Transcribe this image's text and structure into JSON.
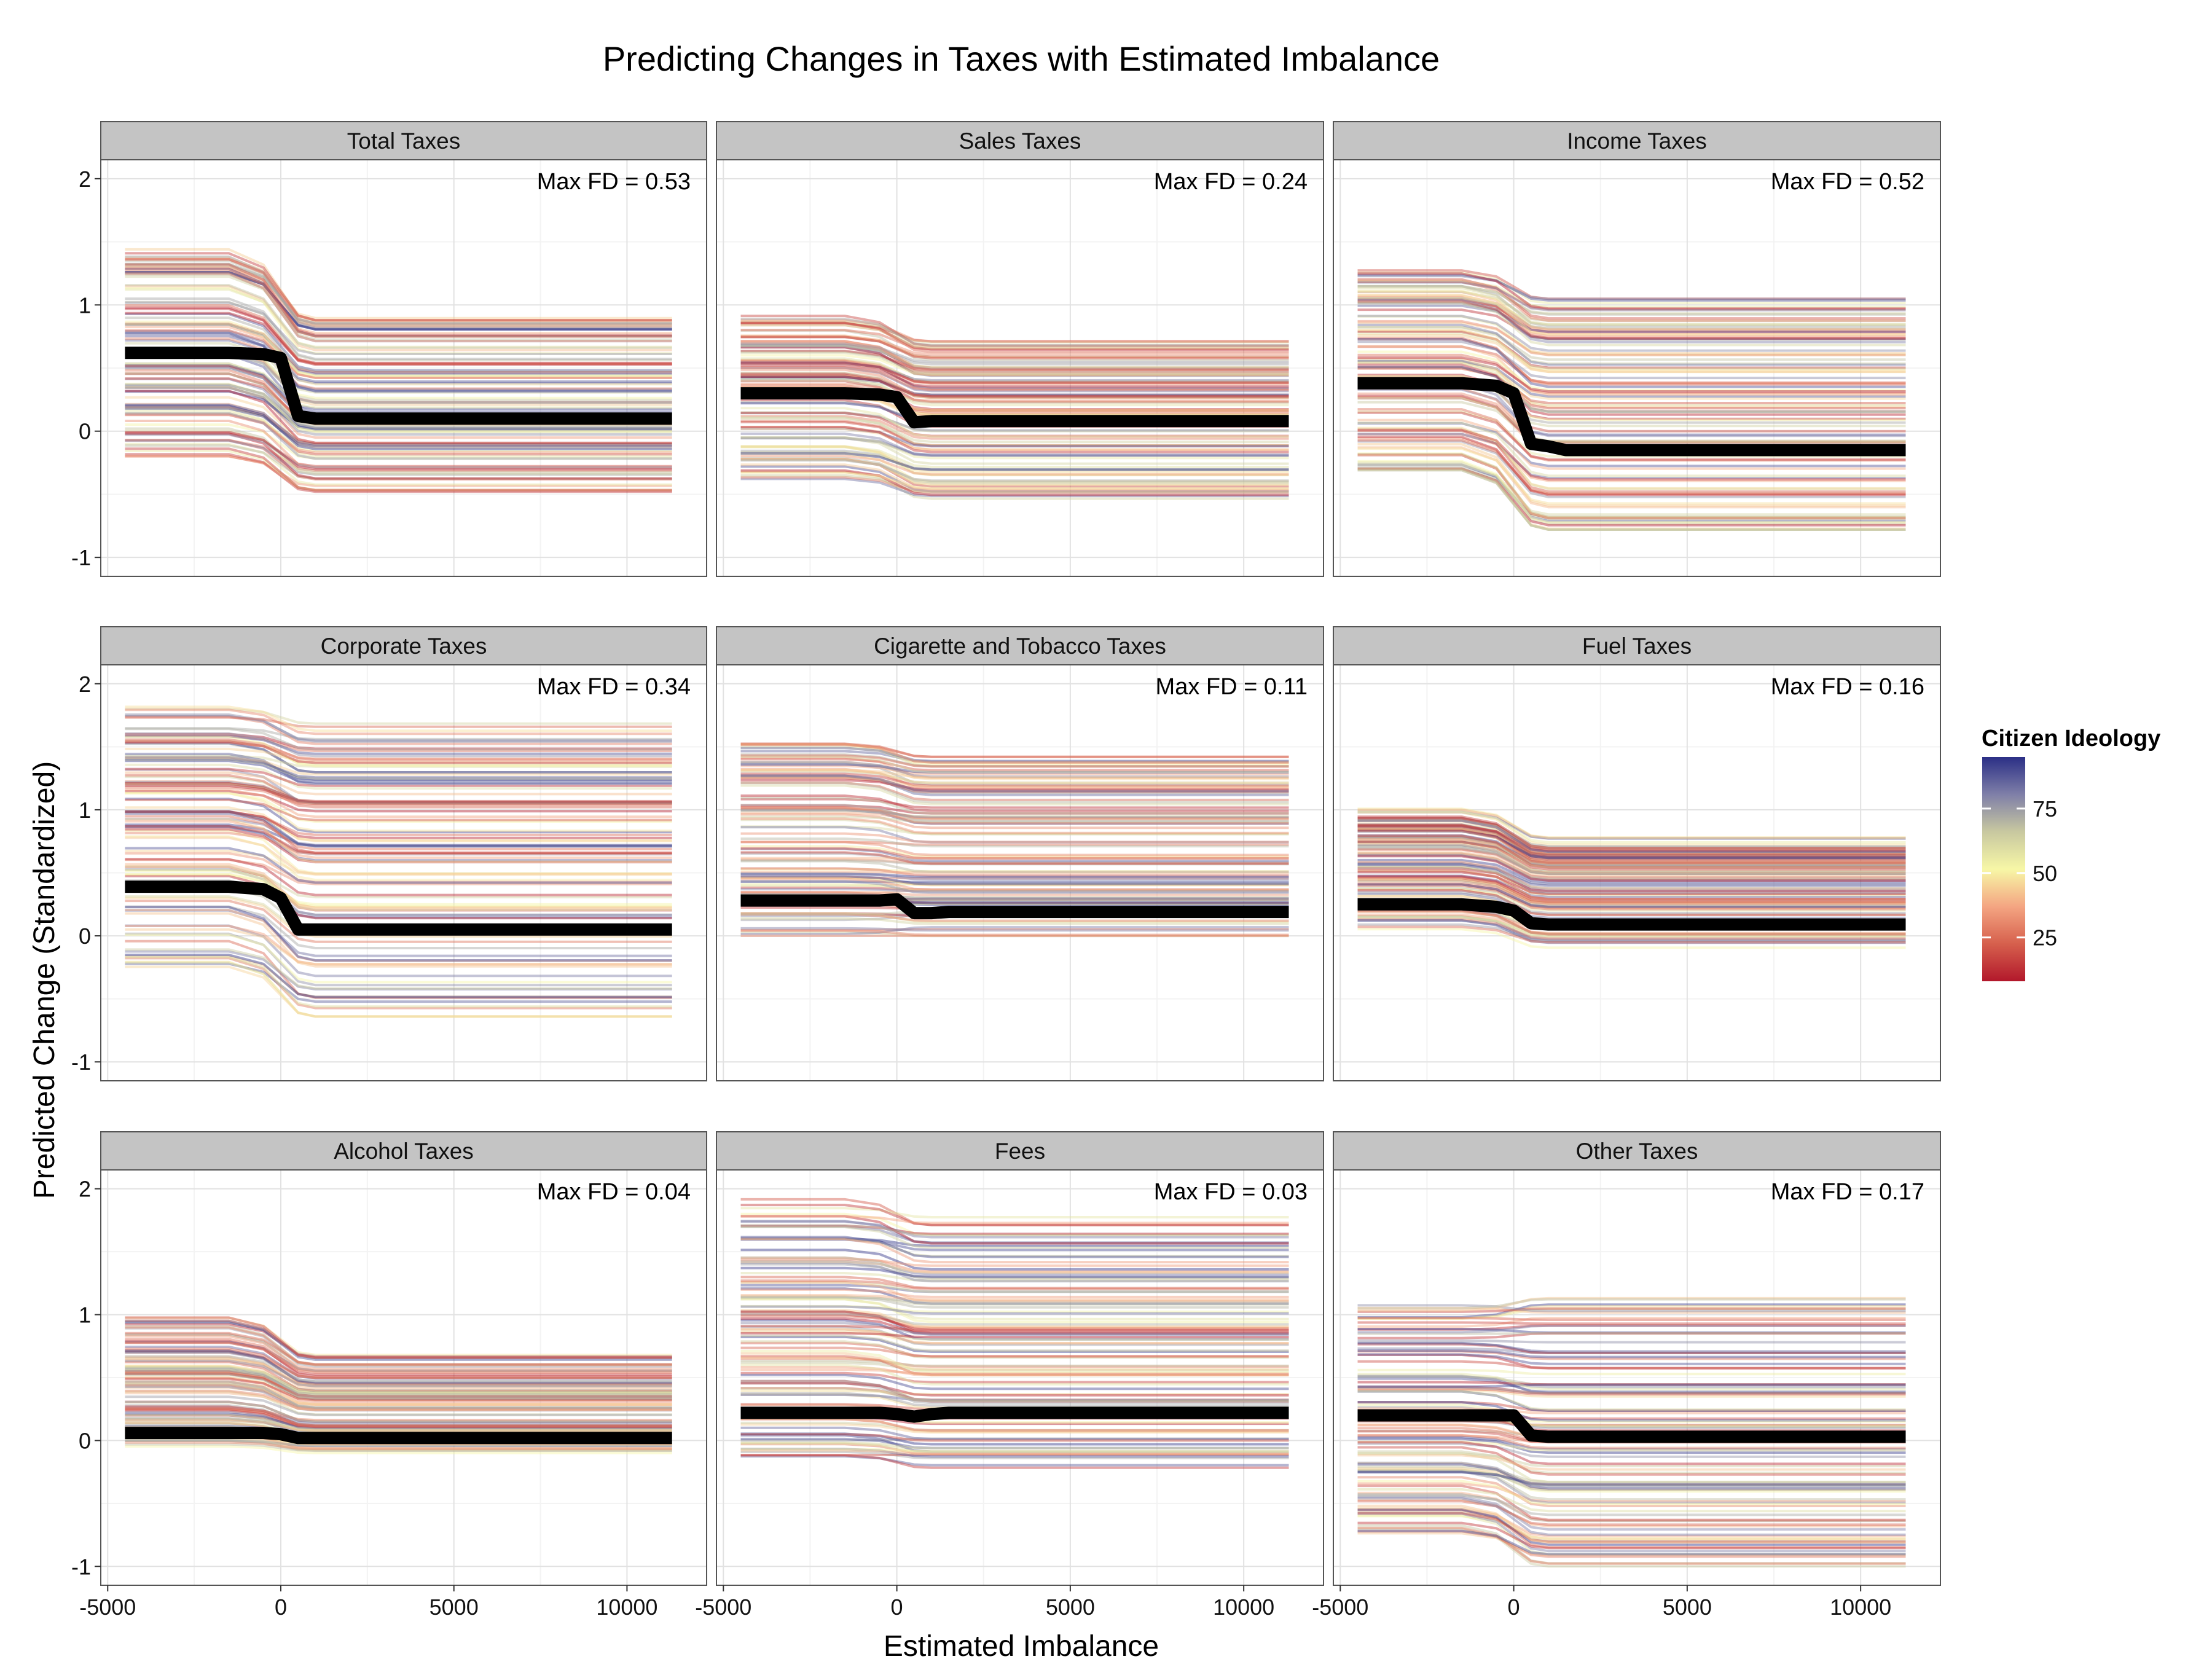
{
  "chart_data": {
    "type": "line",
    "title": "Predicting Changes in Taxes with Estimated Imbalance",
    "xlabel": "Estimated Imbalance",
    "ylabel": "Predicted Change (Standardized)",
    "xlim": [
      -5200,
      12300
    ],
    "ylim": [
      -1.15,
      2.15
    ],
    "x_ticks": [
      -5000,
      0,
      5000,
      10000
    ],
    "x_tick_labels": [
      "-5000",
      "0",
      "5000",
      "10000"
    ],
    "y_ticks": [
      -1,
      0,
      1,
      2
    ],
    "y_tick_labels": [
      "-1",
      "0",
      "1",
      "2"
    ],
    "x": [
      -4500,
      -3000,
      -1500,
      -500,
      0,
      500,
      1000,
      1500,
      2000,
      3000,
      5000,
      7500,
      10000,
      11300
    ],
    "grid": true,
    "legend": {
      "title": "Citizen Ideology",
      "position": "right",
      "ticks": [
        25,
        50,
        75
      ],
      "range": [
        8,
        95
      ],
      "colors": [
        "#b2182b",
        "#d6604d",
        "#f4a582",
        "#f7f7a6",
        "#c8c8a0",
        "#7f7fa8",
        "#2b2f86"
      ]
    },
    "mean_line_color": "#000000",
    "panels": [
      {
        "name": "Total Taxes",
        "annotation": "Max FD = 0.53",
        "mean": [
          0.62,
          0.62,
          0.62,
          0.61,
          0.58,
          0.12,
          0.1,
          0.1,
          0.1,
          0.1,
          0.1,
          0.1,
          0.1,
          0.1
        ],
        "spread_pre": [
          -0.2,
          1.45
        ],
        "spread_post": [
          -0.48,
          0.93
        ]
      },
      {
        "name": "Sales Taxes",
        "annotation": "Max FD = 0.24",
        "mean": [
          0.3,
          0.3,
          0.3,
          0.29,
          0.27,
          0.07,
          0.08,
          0.08,
          0.08,
          0.08,
          0.08,
          0.08,
          0.08,
          0.08
        ],
        "spread_pre": [
          -0.38,
          0.92
        ],
        "spread_post": [
          -0.55,
          0.73
        ]
      },
      {
        "name": "Income Taxes",
        "annotation": "Max FD = 0.52",
        "mean": [
          0.38,
          0.38,
          0.38,
          0.36,
          0.3,
          -0.1,
          -0.12,
          -0.15,
          -0.15,
          -0.15,
          -0.15,
          -0.15,
          -0.15,
          -0.15
        ],
        "spread_pre": [
          -0.32,
          1.28
        ],
        "spread_post": [
          -0.78,
          1.05
        ]
      },
      {
        "name": "Corporate Taxes",
        "annotation": "Max FD = 0.34",
        "mean": [
          0.39,
          0.39,
          0.39,
          0.37,
          0.3,
          0.05,
          0.05,
          0.05,
          0.05,
          0.05,
          0.05,
          0.05,
          0.05,
          0.05
        ],
        "spread_pre": [
          -0.25,
          1.83
        ],
        "spread_post": [
          -0.64,
          1.7
        ]
      },
      {
        "name": "Cigarette and Tobacco Taxes",
        "annotation": "Max FD = 0.11",
        "mean": [
          0.28,
          0.28,
          0.28,
          0.28,
          0.29,
          0.18,
          0.18,
          0.19,
          0.19,
          0.19,
          0.19,
          0.19,
          0.19,
          0.19
        ],
        "spread_pre": [
          0.0,
          1.55
        ],
        "spread_post": [
          0.0,
          1.42
        ]
      },
      {
        "name": "Fuel Taxes",
        "annotation": "Max FD = 0.16",
        "mean": [
          0.25,
          0.25,
          0.25,
          0.23,
          0.2,
          0.1,
          0.09,
          0.09,
          0.09,
          0.09,
          0.09,
          0.09,
          0.09,
          0.09
        ],
        "spread_pre": [
          0.05,
          1.02
        ],
        "spread_post": [
          -0.1,
          0.78
        ]
      },
      {
        "name": "Alcohol Taxes",
        "annotation": "Max FD = 0.04",
        "mean": [
          0.06,
          0.06,
          0.06,
          0.06,
          0.05,
          0.02,
          0.02,
          0.02,
          0.02,
          0.02,
          0.02,
          0.02,
          0.02,
          0.02
        ],
        "spread_pre": [
          -0.05,
          0.98
        ],
        "spread_post": [
          -0.1,
          0.68
        ]
      },
      {
        "name": "Fees",
        "annotation": "Max FD = 0.03",
        "mean": [
          0.22,
          0.22,
          0.22,
          0.22,
          0.21,
          0.19,
          0.21,
          0.22,
          0.22,
          0.22,
          0.22,
          0.22,
          0.22,
          0.22
        ],
        "spread_pre": [
          -0.2,
          1.93
        ],
        "spread_post": [
          -0.26,
          1.79
        ]
      },
      {
        "name": "Other Taxes",
        "annotation": "Max FD = 0.17",
        "mean": [
          0.2,
          0.2,
          0.2,
          0.2,
          0.2,
          0.04,
          0.03,
          0.03,
          0.03,
          0.03,
          0.03,
          0.03,
          0.03,
          0.03
        ],
        "spread_pre": [
          -0.75,
          1.09
        ],
        "spread_post": [
          -1.0,
          1.13
        ]
      }
    ]
  }
}
